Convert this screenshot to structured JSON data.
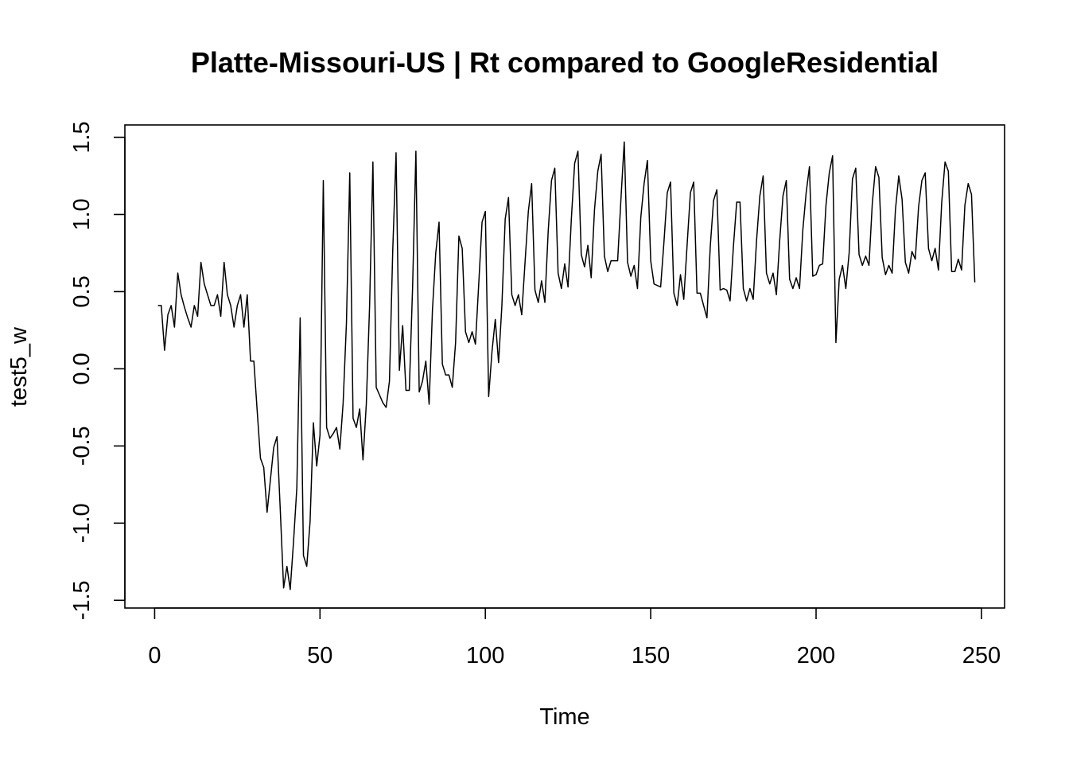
{
  "chart_data": {
    "type": "line",
    "title": "Platte-Missouri-US | Rt compared to GoogleResidential",
    "xlabel": "Time",
    "ylabel": "test5_w",
    "xlim": [
      -9,
      257
    ],
    "ylim": [
      -1.55,
      1.58
    ],
    "x_ticks": [
      0,
      50,
      100,
      150,
      200,
      250
    ],
    "y_ticks": [
      -1.5,
      -1.0,
      -0.5,
      0.0,
      0.5,
      1.0,
      1.5
    ],
    "x_tick_labels": [
      "0",
      "50",
      "100",
      "150",
      "200",
      "250"
    ],
    "y_tick_labels": [
      "-1.5",
      "-1.0",
      "-0.5",
      "0.0",
      "0.5",
      "1.0",
      "1.5"
    ],
    "grid": false,
    "color": "#000000",
    "series": [
      {
        "x_start": 1,
        "x_step": 1,
        "values": [
          0.41,
          0.41,
          0.12,
          0.35,
          0.41,
          0.27,
          0.62,
          0.48,
          0.4,
          0.33,
          0.27,
          0.41,
          0.34,
          0.69,
          0.55,
          0.48,
          0.41,
          0.41,
          0.48,
          0.34,
          0.69,
          0.48,
          0.41,
          0.27,
          0.41,
          0.48,
          0.27,
          0.48,
          0.05,
          0.05,
          -0.27,
          -0.58,
          -0.64,
          -0.93,
          -0.72,
          -0.51,
          -0.44,
          -0.92,
          -1.42,
          -1.28,
          -1.43,
          -1.12,
          -0.77,
          0.33,
          -1.21,
          -1.28,
          -0.99,
          -0.35,
          -0.63,
          -0.43,
          1.22,
          -0.38,
          -0.45,
          -0.42,
          -0.38,
          -0.52,
          -0.22,
          0.3,
          1.27,
          -0.32,
          -0.38,
          -0.26,
          -0.59,
          -0.23,
          0.41,
          1.34,
          -0.12,
          -0.17,
          -0.22,
          -0.25,
          -0.08,
          0.77,
          1.4,
          -0.01,
          0.28,
          -0.14,
          -0.14,
          0.53,
          1.41,
          -0.15,
          -0.08,
          0.05,
          -0.23,
          0.38,
          0.75,
          0.95,
          0.03,
          -0.04,
          -0.04,
          -0.12,
          0.17,
          0.86,
          0.78,
          0.24,
          0.17,
          0.24,
          0.16,
          0.55,
          0.95,
          1.02,
          -0.18,
          0.11,
          0.32,
          0.04,
          0.41,
          0.97,
          1.11,
          0.48,
          0.41,
          0.48,
          0.35,
          0.69,
          1.02,
          1.2,
          0.51,
          0.43,
          0.57,
          0.43,
          0.89,
          1.22,
          1.3,
          0.62,
          0.52,
          0.68,
          0.53,
          0.97,
          1.33,
          1.41,
          0.74,
          0.66,
          0.8,
          0.59,
          1.03,
          1.28,
          1.39,
          0.73,
          0.63,
          0.7,
          0.7,
          0.7,
          1.1,
          1.47,
          0.69,
          0.6,
          0.67,
          0.52,
          0.98,
          1.2,
          1.35,
          0.7,
          0.55,
          0.54,
          0.53,
          0.82,
          1.14,
          1.21,
          0.49,
          0.41,
          0.61,
          0.45,
          0.8,
          1.14,
          1.21,
          0.49,
          0.49,
          0.41,
          0.33,
          0.79,
          1.09,
          1.16,
          0.51,
          0.52,
          0.51,
          0.44,
          0.79,
          1.08,
          1.08,
          0.52,
          0.44,
          0.52,
          0.45,
          0.83,
          1.12,
          1.25,
          0.62,
          0.55,
          0.62,
          0.48,
          0.83,
          1.12,
          1.22,
          0.58,
          0.52,
          0.59,
          0.52,
          0.9,
          1.14,
          1.31,
          0.6,
          0.61,
          0.67,
          0.68,
          1.06,
          1.27,
          1.38,
          0.17,
          0.58,
          0.67,
          0.52,
          0.75,
          1.23,
          1.3,
          0.74,
          0.67,
          0.73,
          0.67,
          1.07,
          1.31,
          1.24,
          0.72,
          0.61,
          0.67,
          0.62,
          1.03,
          1.25,
          1.1,
          0.69,
          0.62,
          0.76,
          0.71,
          1.05,
          1.22,
          1.27,
          0.78,
          0.7,
          0.78,
          0.64,
          1.08,
          1.34,
          1.28,
          0.63,
          0.63,
          0.71,
          0.64,
          1.06,
          1.2,
          1.13,
          0.56
        ]
      }
    ]
  }
}
